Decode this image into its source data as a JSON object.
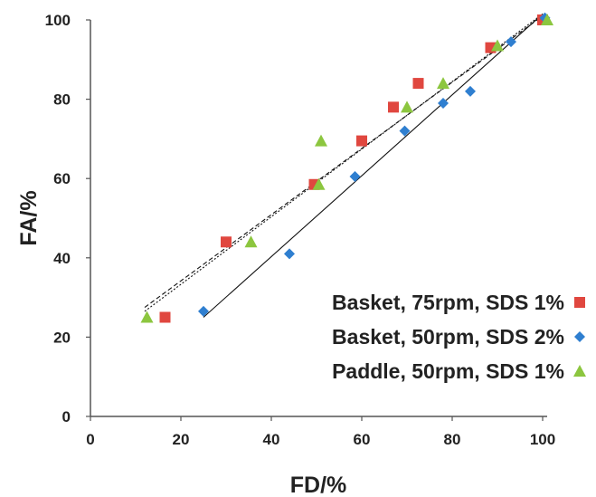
{
  "chart_data": {
    "type": "scatter",
    "xlabel": "FD/%",
    "ylabel": "FA/%",
    "xlim": [
      0,
      100
    ],
    "ylim": [
      0,
      100
    ],
    "x_ticks": [
      0,
      20,
      40,
      60,
      80,
      100
    ],
    "y_ticks": [
      0,
      20,
      40,
      60,
      80,
      100
    ],
    "grid": false,
    "legend_position": "bottom-right",
    "series": [
      {
        "name": "Basket, 75rpm, SDS 1%",
        "marker": "square",
        "color": "#e0473f",
        "points": [
          [
            16.5,
            25
          ],
          [
            30,
            44
          ],
          [
            49.5,
            58.5
          ],
          [
            60,
            69.5
          ],
          [
            67,
            78
          ],
          [
            72.5,
            84
          ],
          [
            88.5,
            93
          ],
          [
            100,
            100
          ]
        ],
        "trendline": {
          "style": "dashed",
          "points": [
            [
              12,
              27.5
            ],
            [
              100,
              101
            ]
          ]
        }
      },
      {
        "name": "Basket, 50rpm, SDS 2%",
        "marker": "diamond",
        "color": "#2f7fd0",
        "points": [
          [
            25,
            26.5
          ],
          [
            44,
            41
          ],
          [
            58.5,
            60.5
          ],
          [
            69.5,
            72
          ],
          [
            78,
            79
          ],
          [
            84,
            82
          ],
          [
            93,
            94.5
          ],
          [
            100.5,
            100.5
          ]
        ],
        "trendline": {
          "style": "solid",
          "points": [
            [
              25,
              25
            ],
            [
              100,
              101.5
            ]
          ]
        }
      },
      {
        "name": "Paddle, 50rpm, SDS 1%",
        "marker": "triangle",
        "color": "#8cc63f",
        "points": [
          [
            12.5,
            25
          ],
          [
            35.5,
            44
          ],
          [
            50.5,
            58.5
          ],
          [
            51,
            69.5
          ],
          [
            70,
            78
          ],
          [
            78,
            84
          ],
          [
            90,
            93.5
          ],
          [
            101,
            100
          ]
        ],
        "trendline": {
          "style": "dotted",
          "points": [
            [
              12,
              26.5
            ],
            [
              100,
              101.5
            ]
          ]
        }
      }
    ]
  }
}
